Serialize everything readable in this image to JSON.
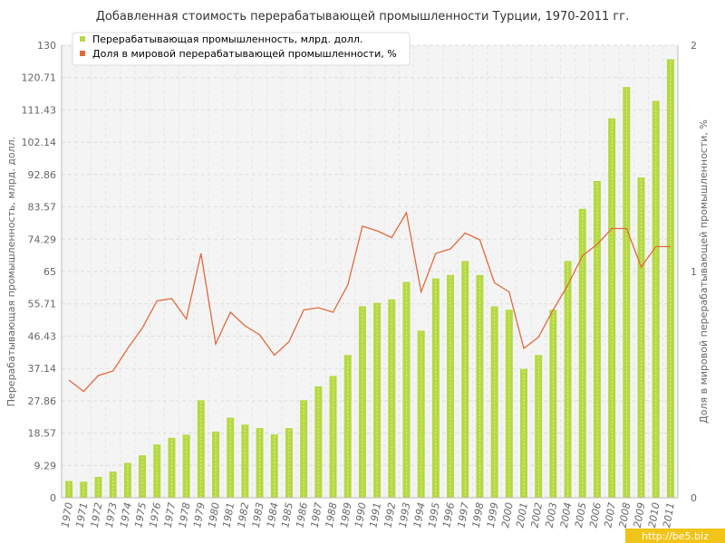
{
  "chart_data": {
    "type": "bar+line",
    "title": "Добавленная стоимость перерабатывающей промышленности Турции, 1970-2011 гг.",
    "ylabel_left": "Перерабатывающая промышленность, млрд. долл.",
    "ylabel_right": "Доля в мировой перерабатывающей промышленности, %",
    "ylim_left": [
      0,
      130
    ],
    "ylim_right": [
      0,
      2
    ],
    "yticks_left": [
      "0",
      "9.29",
      "18.57",
      "27.86",
      "37.14",
      "46.43",
      "55.71",
      "65",
      "74.29",
      "83.57",
      "92.86",
      "102.14",
      "111.43",
      "120.71",
      "130"
    ],
    "yticks_right": [
      "0",
      "1",
      "2"
    ],
    "grid": true,
    "legend_position": "top-left",
    "categories": [
      "1970",
      "1971",
      "1972",
      "1973",
      "1974",
      "1975",
      "1976",
      "1977",
      "1978",
      "1979",
      "1980",
      "1981",
      "1982",
      "1983",
      "1984",
      "1985",
      "1986",
      "1987",
      "1988",
      "1989",
      "1990",
      "1991",
      "1992",
      "1993",
      "1994",
      "1995",
      "1996",
      "1997",
      "1998",
      "1999",
      "2000",
      "2001",
      "2002",
      "2003",
      "2004",
      "2005",
      "2006",
      "2007",
      "2008",
      "2009",
      "2010",
      "2011"
    ],
    "series": [
      {
        "name": "Перерабатывающая промышленность, млрд. долл.",
        "kind": "bar",
        "axis": "left",
        "color": "#b5d940",
        "values": [
          4.8,
          4.6,
          6.0,
          7.5,
          10.0,
          12.2,
          15.3,
          17.2,
          18.1,
          28.0,
          19.0,
          23.0,
          21.0,
          20.0,
          18.2,
          20.0,
          28.0,
          32.0,
          35.0,
          41.0,
          55.0,
          56.0,
          57.0,
          62.0,
          48.0,
          63.0,
          64.0,
          68.0,
          64.0,
          55.0,
          54.0,
          37.0,
          41.0,
          54.0,
          68.0,
          83.0,
          91.0,
          109.0,
          118.0,
          92.0,
          114.0,
          126.0
        ]
      },
      {
        "name": "Доля в мировой перерабатывающей промышленности, %",
        "kind": "line",
        "axis": "right",
        "color": "#e06a3a",
        "values": [
          0.52,
          0.47,
          0.54,
          0.56,
          0.66,
          0.75,
          0.87,
          0.88,
          0.79,
          1.08,
          0.68,
          0.82,
          0.76,
          0.72,
          0.63,
          0.69,
          0.83,
          0.84,
          0.82,
          0.94,
          1.2,
          1.18,
          1.15,
          1.26,
          0.91,
          1.08,
          1.1,
          1.17,
          1.14,
          0.95,
          0.91,
          0.66,
          0.71,
          0.83,
          0.94,
          1.07,
          1.12,
          1.19,
          1.19,
          1.02,
          1.11,
          1.11
        ]
      }
    ]
  },
  "watermark": "http://be5.biz"
}
